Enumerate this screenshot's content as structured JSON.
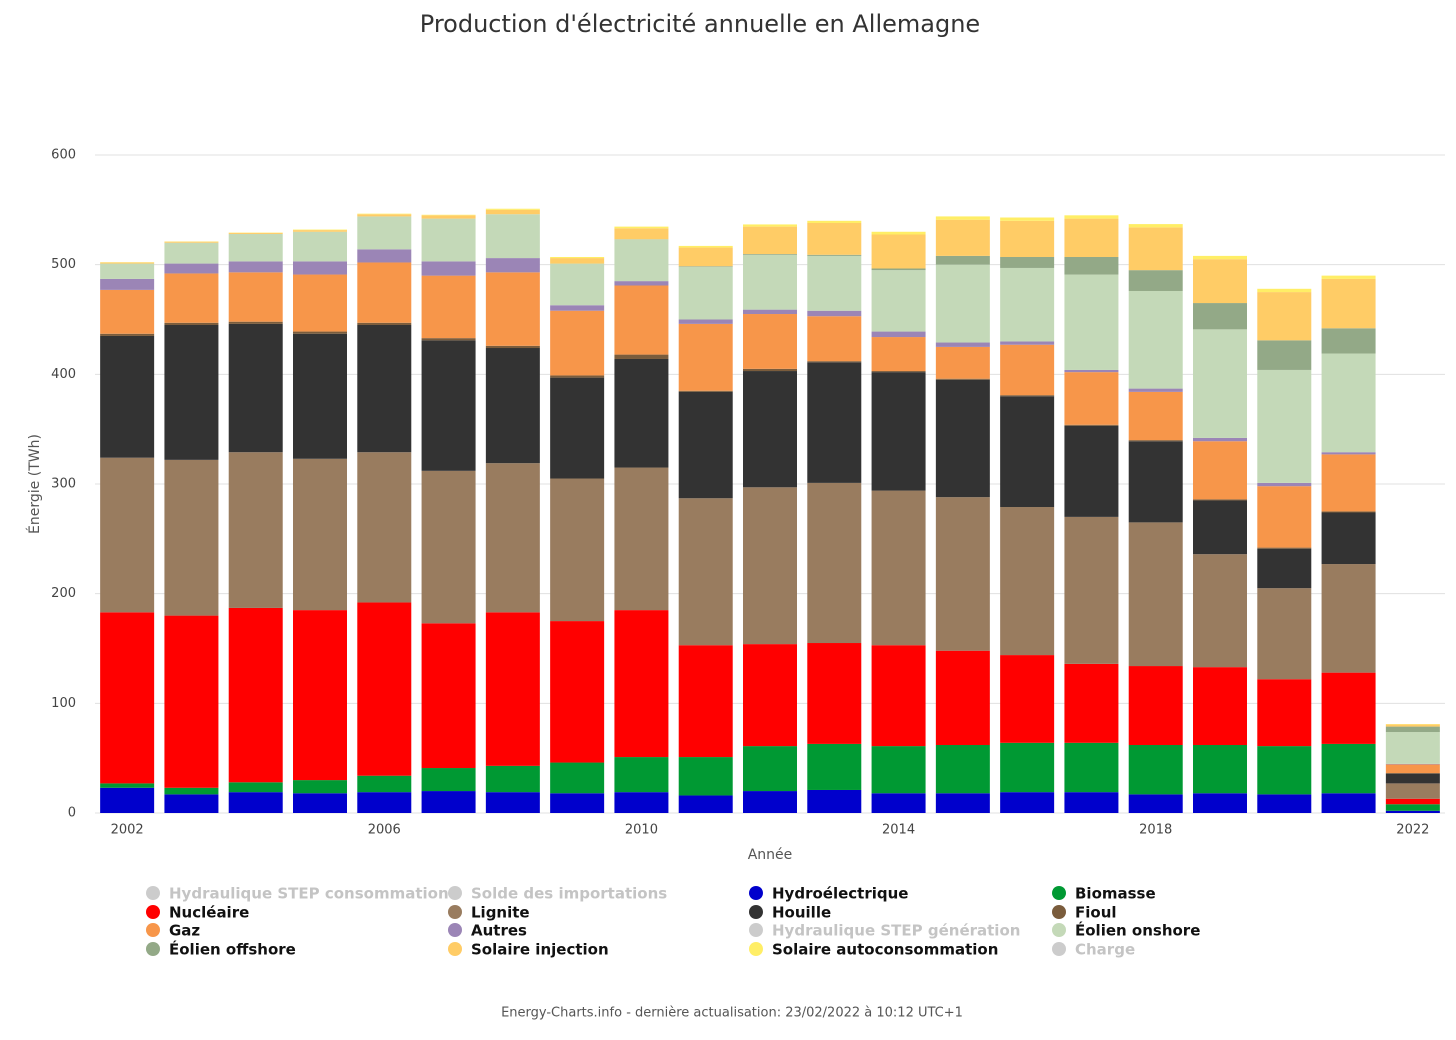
{
  "chart_data": {
    "type": "bar",
    "stacked": true,
    "title": "Production d'électricité annuelle en Allemagne",
    "x_label": "Année",
    "y_label": "Énergie (TWh)",
    "footer": "Energy-Charts.info - dernière actualisation: 23/02/2022 à 10:12 UTC+1",
    "x": [
      2002,
      2003,
      2004,
      2005,
      2006,
      2007,
      2008,
      2009,
      2010,
      2011,
      2012,
      2013,
      2014,
      2015,
      2016,
      2017,
      2018,
      2019,
      2020,
      2021,
      2022
    ],
    "xlim": [
      2001.5,
      2022.5
    ],
    "xticks": [
      2002,
      2006,
      2010,
      2014,
      2018,
      2022
    ],
    "ylim": [
      0,
      600
    ],
    "yticks": [
      0,
      100,
      200,
      300,
      400,
      500,
      600
    ],
    "grid": true,
    "legend": "bottom",
    "series": [
      {
        "name": "Hydraulique STEP consommation",
        "color": "#cccccc",
        "visible": false
      },
      {
        "name": "Solde des importations",
        "color": "#cccccc",
        "visible": false
      },
      {
        "name": "Hydroélectrique",
        "color": "#0000cc",
        "values": [
          23,
          17,
          19,
          18,
          19,
          20,
          19,
          18,
          19,
          16,
          20,
          21,
          18,
          18,
          19,
          19,
          17,
          18,
          17,
          18,
          2
        ]
      },
      {
        "name": "Biomasse",
        "color": "#009933",
        "values": [
          4,
          6,
          9,
          12,
          15,
          21,
          24,
          28,
          32,
          35,
          41,
          42,
          43,
          44,
          45,
          45,
          45,
          44,
          44,
          45,
          6
        ]
      },
      {
        "name": "Nucléaire",
        "color": "#ff0000",
        "values": [
          156,
          157,
          159,
          155,
          158,
          132,
          140,
          129,
          134,
          102,
          93,
          92,
          92,
          86,
          80,
          72,
          72,
          71,
          61,
          65,
          5
        ]
      },
      {
        "name": "Lignite",
        "color": "#997c5f",
        "values": [
          141,
          142,
          142,
          138,
          137,
          139,
          136,
          130,
          130,
          134,
          143,
          146,
          141,
          140,
          135,
          134,
          131,
          103,
          83,
          99,
          14
        ]
      },
      {
        "name": "Houille",
        "color": "#333333",
        "values": [
          111,
          123,
          117,
          114,
          116,
          119,
          105,
          92,
          99,
          97,
          106,
          110,
          108,
          107,
          101,
          83,
          74,
          49,
          36,
          47,
          9
        ]
      },
      {
        "name": "Fioul",
        "color": "#7a5c3c",
        "values": [
          2,
          2,
          2,
          2,
          2,
          2,
          2,
          2,
          4,
          1,
          2,
          1,
          1,
          1,
          1,
          1,
          1,
          1,
          1,
          1,
          0.3
        ]
      },
      {
        "name": "Gaz",
        "color": "#f7964a",
        "values": [
          40,
          45,
          45,
          52,
          55,
          57,
          67,
          59,
          63,
          61,
          50,
          41,
          31,
          29,
          46,
          48,
          44,
          53,
          56,
          52,
          8
        ]
      },
      {
        "name": "Autres",
        "color": "#9b85b6",
        "values": [
          10,
          9,
          10,
          12,
          12,
          13,
          13,
          5,
          4,
          4,
          4,
          5,
          5,
          4,
          3,
          2,
          3,
          3,
          3,
          2,
          0.5
        ]
      },
      {
        "name": "Hydraulique STEP génération",
        "color": "#cccccc",
        "visible": false
      },
      {
        "name": "Éolien onshore",
        "color": "#c4d9b8",
        "values": [
          14,
          19,
          25,
          27,
          30,
          39,
          40,
          38,
          38,
          48,
          50,
          50,
          56,
          71,
          67,
          87,
          89,
          99,
          103,
          90,
          29
        ]
      },
      {
        "name": "Éolien offshore",
        "color": "#93a987",
        "values": [
          0,
          0,
          0,
          0,
          0,
          0,
          0,
          0,
          0.2,
          0.6,
          0.7,
          1,
          1.5,
          8,
          10,
          16,
          19,
          24,
          27,
          23,
          5
        ]
      },
      {
        "name": "Solaire injection",
        "color": "#ffcc66",
        "values": [
          1,
          1,
          1,
          1.5,
          2,
          3,
          4,
          5,
          10,
          17,
          25,
          29,
          31,
          33,
          33,
          35,
          39,
          40,
          44,
          45,
          2
        ]
      },
      {
        "name": "Solaire autoconsommation",
        "color": "#ffee66",
        "values": [
          0.2,
          0.2,
          0.3,
          0.5,
          0.5,
          0.5,
          1,
          1,
          1.5,
          1.5,
          2,
          2,
          2.5,
          3,
          3,
          3,
          3,
          3,
          3,
          3,
          0.3
        ]
      },
      {
        "name": "Charge",
        "color": "#cccccc",
        "visible": false
      }
    ]
  }
}
